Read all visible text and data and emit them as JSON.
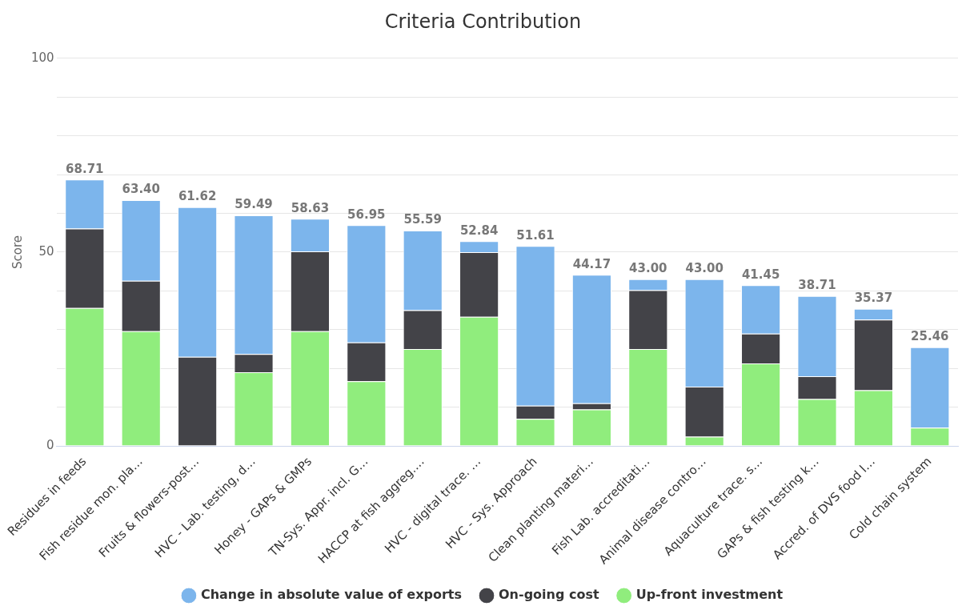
{
  "chart_data": {
    "type": "bar",
    "title": "Criteria Contribution",
    "ylabel": "Score",
    "categories": [
      "Residues in feeds",
      "Fish residue mon. pla…",
      "Fruits & flowers-post…",
      "HVC - Lab. testing, d…",
      "Honey - GAPs & GMPs",
      "TN-Sys. Appr. incl. G…",
      "HACCP at fish aggreg.…",
      "HVC - digital trace. …",
      "HVC - Sys. Approach",
      "Clean planting materi…",
      "Fish Lab. accreditati…",
      "Animal disease contro…",
      "Aquaculture trace. s…",
      "GAPs & fish testing k…",
      "Accred. of DVS food l…",
      "Cold chain system"
    ],
    "stacked": true,
    "series": [
      {
        "name": "Up-front investment",
        "color": "#90ed7d",
        "values": [
          35.6,
          29.6,
          0,
          19.0,
          29.6,
          16.7,
          25.0,
          33.3,
          7.0,
          9.4,
          25.0,
          2.4,
          21.3,
          12.1,
          14.4,
          4.7
        ]
      },
      {
        "name": "On-going cost",
        "color": "#434348",
        "values": [
          20.5,
          13.0,
          23.0,
          4.7,
          20.6,
          10.0,
          10.0,
          16.7,
          3.4,
          1.6,
          15.2,
          12.9,
          7.7,
          5.9,
          18.2,
          0
        ]
      },
      {
        "name": "Change in absolute value of exports",
        "color": "#7cb5ec",
        "values": [
          12.61,
          20.8,
          38.62,
          35.79,
          8.43,
          30.25,
          20.59,
          2.84,
          41.21,
          33.17,
          2.8,
          27.7,
          12.45,
          20.71,
          2.77,
          20.76
        ]
      }
    ],
    "totals": [
      "68.71",
      "63.40",
      "61.62",
      "59.49",
      "58.63",
      "56.95",
      "55.59",
      "52.84",
      "51.61",
      "44.17",
      "43.00",
      "43.00",
      "41.45",
      "38.71",
      "35.37",
      "25.46"
    ],
    "ylim": [
      0,
      100
    ],
    "yticks": [
      0,
      {
        "value": 10,
        "label": null
      },
      {
        "value": 20,
        "label": null
      },
      {
        "value": 30,
        "label": null
      },
      {
        "value": 40,
        "label": null
      },
      50,
      {
        "value": 60,
        "label": null
      },
      {
        "value": 70,
        "label": null
      },
      {
        "value": 80,
        "label": null
      },
      {
        "value": 90,
        "label": null
      },
      100
    ],
    "grid": "y",
    "legend": "bottom"
  }
}
